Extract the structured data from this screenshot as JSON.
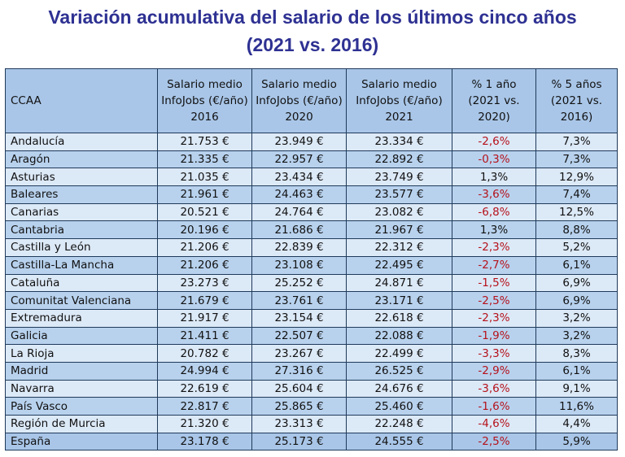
{
  "title_line1": "Variación acumulativa del salario de los últimos cinco años",
  "title_line2": "(2021 vs. 2016)",
  "headers": {
    "ccaa": "CCAA",
    "s2016": "Salario medio InfoJobs (€/año) 2016",
    "s2020": "Salario medio InfoJobs (€/año) 2020",
    "s2021": "Salario medio InfoJobs (€/año) 2021",
    "p1": "% 1 año (2021 vs. 2020)",
    "p5": "% 5 años (2021 vs. 2016)"
  },
  "colors": {
    "title": "#2e3192",
    "negative": "#b5121b",
    "header_bg": "#a9c6e8",
    "row_light": "#dce9f7",
    "row_dark": "#b8d2ee"
  },
  "rows": [
    {
      "name": "Andalucía",
      "s2016": "21.753 €",
      "s2020": "23.949 €",
      "s2021": "23.334 €",
      "p1": "-2,6%",
      "p5": "7,3%"
    },
    {
      "name": "Aragón",
      "s2016": "21.335 €",
      "s2020": "22.957 €",
      "s2021": "22.892 €",
      "p1": "-0,3%",
      "p5": "7,3%"
    },
    {
      "name": "Asturias",
      "s2016": "21.035 €",
      "s2020": "23.434 €",
      "s2021": "23.749 €",
      "p1": "1,3%",
      "p5": "12,9%"
    },
    {
      "name": "Baleares",
      "s2016": "21.961 €",
      "s2020": "24.463 €",
      "s2021": "23.577 €",
      "p1": "-3,6%",
      "p5": "7,4%"
    },
    {
      "name": "Canarias",
      "s2016": "20.521 €",
      "s2020": "24.764 €",
      "s2021": "23.082 €",
      "p1": "-6,8%",
      "p5": "12,5%"
    },
    {
      "name": "Cantabria",
      "s2016": "20.196 €",
      "s2020": "21.686 €",
      "s2021": "21.967 €",
      "p1": "1,3%",
      "p5": "8,8%"
    },
    {
      "name": "Castilla y León",
      "s2016": "21.206 €",
      "s2020": "22.839 €",
      "s2021": "22.312 €",
      "p1": "-2,3%",
      "p5": "5,2%"
    },
    {
      "name": "Castilla-La Mancha",
      "s2016": "21.206 €",
      "s2020": "23.108 €",
      "s2021": "22.495 €",
      "p1": "-2,7%",
      "p5": "6,1%"
    },
    {
      "name": "Cataluña",
      "s2016": "23.273 €",
      "s2020": "25.252 €",
      "s2021": "24.871 €",
      "p1": "-1,5%",
      "p5": "6,9%"
    },
    {
      "name": "Comunitat Valenciana",
      "s2016": "21.679 €",
      "s2020": "23.761 €",
      "s2021": "23.171 €",
      "p1": "-2,5%",
      "p5": "6,9%"
    },
    {
      "name": "Extremadura",
      "s2016": "21.917 €",
      "s2020": "23.154 €",
      "s2021": "22.618 €",
      "p1": "-2,3%",
      "p5": "3,2%"
    },
    {
      "name": "Galicia",
      "s2016": "21.411 €",
      "s2020": "22.507 €",
      "s2021": "22.088 €",
      "p1": "-1,9%",
      "p5": "3,2%"
    },
    {
      "name": "La Rioja",
      "s2016": "20.782 €",
      "s2020": "23.267 €",
      "s2021": "22.499 €",
      "p1": "-3,3%",
      "p5": "8,3%"
    },
    {
      "name": "Madrid",
      "s2016": "24.994 €",
      "s2020": "27.316 €",
      "s2021": "26.525 €",
      "p1": "-2,9%",
      "p5": "6,1%"
    },
    {
      "name": "Navarra",
      "s2016": "22.619 €",
      "s2020": "25.604 €",
      "s2021": "24.676 €",
      "p1": "-3,6%",
      "p5": "9,1%"
    },
    {
      "name": "País Vasco",
      "s2016": "22.817 €",
      "s2020": "25.865 €",
      "s2021": "25.460 €",
      "p1": "-1,6%",
      "p5": "11,6%"
    },
    {
      "name": "Región de Murcia",
      "s2016": "21.320 €",
      "s2020": "23.313 €",
      "s2021": "22.248 €",
      "p1": "-4,6%",
      "p5": "4,4%"
    },
    {
      "name": "España",
      "s2016": "23.178 €",
      "s2020": "25.173 €",
      "s2021": "24.555 €",
      "p1": "-2,5%",
      "p5": "5,9%"
    }
  ]
}
